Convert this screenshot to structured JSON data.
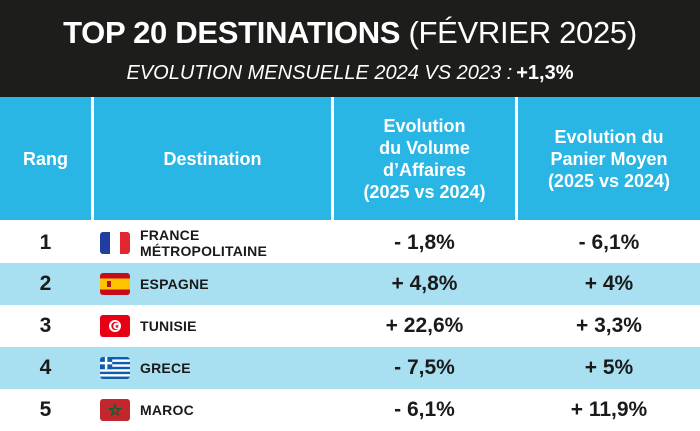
{
  "banner": {
    "title_strong": "TOP 20 DESTINATIONS",
    "title_light": "(FÉVRIER 2025)",
    "subtitle": "EVOLUTION MENSUELLE 2024 VS 2023 :",
    "subtitle_value": "+1,3%"
  },
  "table": {
    "headers": {
      "rank": "Rang",
      "destination": "Destination",
      "volume_line1": "Evolution",
      "volume_line2": "du Volume",
      "volume_line3": "d’Affaires",
      "volume_line4": "(2025 vs 2024)",
      "basket_line1": "Evolution du",
      "basket_line2": "Panier Moyen",
      "basket_line3": "(2025 vs 2024)"
    },
    "rows": [
      {
        "rank": "1",
        "flag": "france-flag-icon",
        "destination": "FRANCE MÉTROPOLITAINE",
        "volume": "- 1,8%",
        "basket": "- 6,1%"
      },
      {
        "rank": "2",
        "flag": "spain-flag-icon",
        "destination": "ESPAGNE",
        "volume": "+ 4,8%",
        "basket": "+ 4%"
      },
      {
        "rank": "3",
        "flag": "tunisia-flag-icon",
        "destination": "TUNISIE",
        "volume": "+ 22,6%",
        "basket": "+ 3,3%"
      },
      {
        "rank": "4",
        "flag": "greece-flag-icon",
        "destination": "GRECE",
        "volume": "- 7,5%",
        "basket": "+ 5%"
      },
      {
        "rank": "5",
        "flag": "morocco-flag-icon",
        "destination": "MAROC",
        "volume": "- 6,1%",
        "basket": "+ 11,9%"
      }
    ]
  },
  "colors": {
    "banner_bg": "#1d1d1b",
    "header_bg": "#29b6e5",
    "alt_row_bg": "#a8dff1"
  }
}
